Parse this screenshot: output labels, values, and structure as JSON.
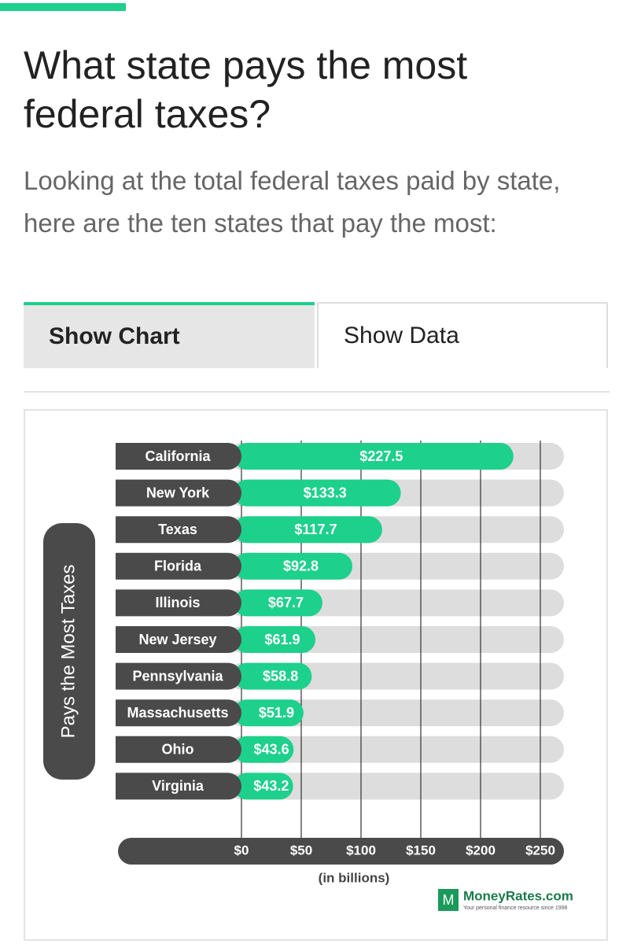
{
  "header": {
    "title": "What state pays the most federal taxes?",
    "intro": "Looking at the total federal taxes paid by state, here are the ten states that pay the most:"
  },
  "tabs": [
    "Show Chart",
    "Show Data"
  ],
  "chart_data": {
    "type": "bar",
    "categories": [
      "California",
      "New York",
      "Texas",
      "Florida",
      "Illinois",
      "New Jersey",
      "Pennsylvania",
      "Massachusetts",
      "Ohio",
      "Virginia"
    ],
    "values": [
      227.5,
      133.3,
      117.7,
      92.8,
      67.7,
      61.9,
      58.8,
      51.9,
      43.6,
      43.2
    ],
    "value_labels": [
      "$227.5",
      "$133.3",
      "$117.7",
      "$92.8",
      "$67.7",
      "$61.9",
      "$58.8",
      "$51.9",
      "$43.6",
      "$43.2"
    ],
    "color": "#1dd08c",
    "track_color": "#dddddd",
    "ylabel": "Pays the Most Taxes",
    "xlabel": "(in billions)",
    "xlim": [
      0,
      250
    ],
    "xticks": [
      {
        "value": 0,
        "label": "$0"
      },
      {
        "value": 50,
        "label": "$50"
      },
      {
        "value": 100,
        "label": "$100"
      },
      {
        "value": 150,
        "label": "$150"
      },
      {
        "value": 200,
        "label": "$200"
      },
      {
        "value": 250,
        "label": "$250"
      }
    ],
    "grid": true
  },
  "logo": {
    "mark": "M",
    "name": "MoneyRates.com",
    "tagline": "Your personal finance resource since 1998"
  }
}
